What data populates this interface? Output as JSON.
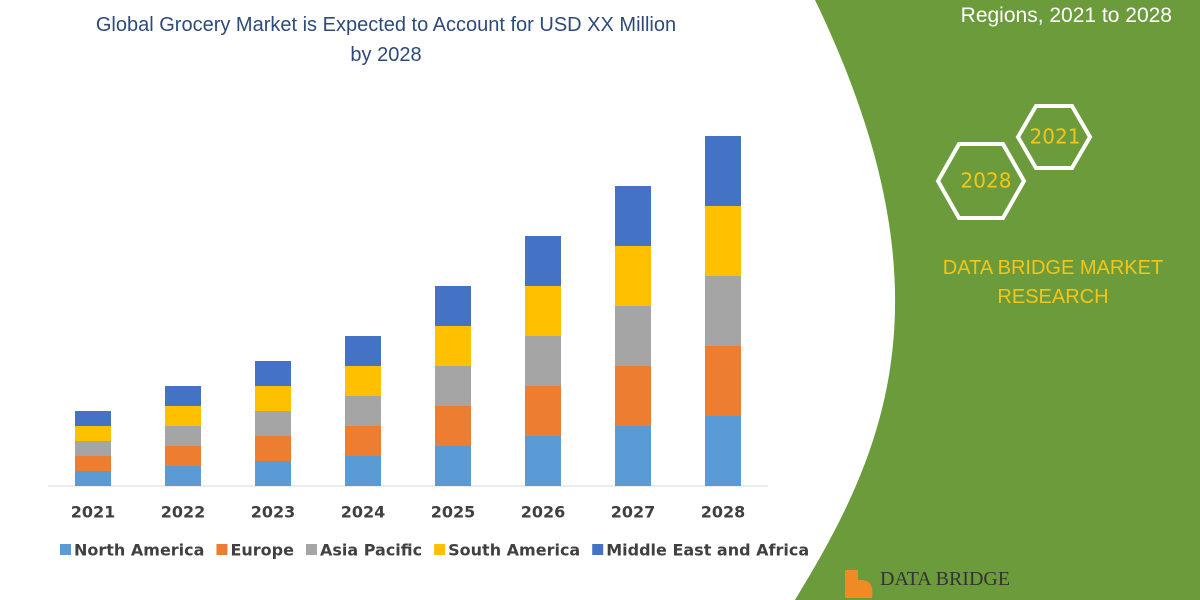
{
  "chart_data": {
    "type": "stacked-bar",
    "title": "Global Grocery Market is Expected to Account for USD XX Million by 2028",
    "categories": [
      "2021",
      "2022",
      "2023",
      "2024",
      "2025",
      "2026",
      "2027",
      "2028"
    ],
    "series": [
      {
        "name": "North America",
        "color": "#5b9bd5",
        "values": [
          15,
          20,
          25,
          30,
          40,
          50,
          60,
          70
        ]
      },
      {
        "name": "Europe",
        "color": "#ed7d31",
        "values": [
          15,
          20,
          25,
          30,
          40,
          50,
          60,
          70
        ]
      },
      {
        "name": "Asia Pacific",
        "color": "#a5a5a5",
        "values": [
          15,
          20,
          25,
          30,
          40,
          50,
          60,
          70
        ]
      },
      {
        "name": "South America",
        "color": "#ffc000",
        "values": [
          15,
          20,
          25,
          30,
          40,
          50,
          60,
          70
        ]
      },
      {
        "name": "Middle East and Africa",
        "color": "#4472c4",
        "values": [
          15,
          20,
          25,
          30,
          40,
          50,
          60,
          70
        ]
      }
    ],
    "ylim": [
      0,
      360
    ],
    "legend": "bottom"
  },
  "panel": {
    "subtitle": "Regions, 2021 to 2028",
    "hex_top": "2021",
    "hex_bottom": "2028",
    "brand": "DATA BRIDGE MARKET RESEARCH",
    "logo": "DATA BRIDGE"
  }
}
